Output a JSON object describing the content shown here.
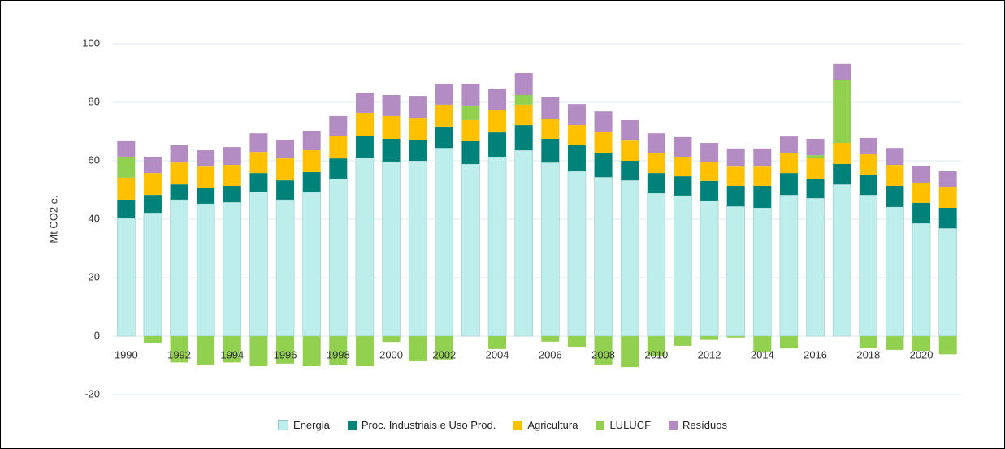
{
  "chart_data": {
    "type": "stacked_bar",
    "y_label": "Mt CO2 e.",
    "categories": [
      "1990",
      null,
      "1992",
      null,
      "1994",
      null,
      "1996",
      null,
      "1998",
      null,
      "2000",
      null,
      "2002",
      null,
      "2004",
      null,
      "2006",
      null,
      "2008",
      null,
      "2010",
      null,
      "2012",
      null,
      "2014",
      null,
      "2016",
      null,
      "2018",
      null,
      "2020",
      null
    ],
    "series": [
      {
        "name": "Energia",
        "color": "#bdeeec",
        "values": [
          40.3,
          42.2,
          46.7,
          45.3,
          45.8,
          49.4,
          46.7,
          49.2,
          53.9,
          61.1,
          59.7,
          60,
          64.4,
          58.9,
          61.4,
          63.6,
          59.4,
          56.4,
          54.4,
          53.3,
          48.9,
          48.1,
          46.4,
          44.4,
          43.9,
          48.3,
          47.2,
          51.9,
          48.3,
          44.2,
          38.6,
          36.9
        ]
      },
      {
        "name": "Proc. Industriais e Uso Prod.",
        "color": "#00827a",
        "values": [
          6.4,
          6.1,
          5.2,
          5.3,
          5.6,
          6.4,
          6.6,
          6.9,
          6.9,
          7.5,
          7.8,
          7.2,
          7.3,
          7.8,
          8.3,
          8.6,
          8.1,
          8.9,
          8.4,
          6.7,
          6.9,
          6.6,
          6.7,
          7,
          7.5,
          7.5,
          6.7,
          7,
          7,
          7.2,
          7,
          7
        ]
      },
      {
        "name": "Agricultura",
        "color": "#ffc000",
        "values": [
          7.5,
          7.5,
          7.5,
          7.4,
          7.2,
          7.2,
          7.5,
          7.5,
          7.8,
          7.8,
          7.8,
          7.5,
          7.5,
          7.2,
          7.5,
          7,
          6.7,
          6.9,
          7.2,
          6.9,
          6.7,
          6.7,
          6.6,
          6.6,
          6.6,
          6.7,
          6.9,
          7.2,
          6.9,
          7.2,
          6.9,
          7.2
        ]
      },
      {
        "name": "LULUCF",
        "color": "#92d050",
        "values": [
          7.2,
          -2.3,
          -9,
          -9.7,
          -9,
          -10.3,
          -9.4,
          -10.3,
          -10,
          -10.3,
          -2,
          -8.6,
          -8,
          5,
          -4.4,
          3.3,
          -1.9,
          -3.6,
          -9.7,
          -10.6,
          -6.7,
          -3.3,
          -1.3,
          -0.5,
          -5.3,
          -4.2,
          1.1,
          21.4,
          -3.9,
          -4.7,
          -5,
          -6.2
        ]
      },
      {
        "name": "Resíduos",
        "color": "#b48cc4",
        "values": [
          5.3,
          5.6,
          5.9,
          5.6,
          6.1,
          6.4,
          6.4,
          6.7,
          6.7,
          6.9,
          7.2,
          7.5,
          7.2,
          7.5,
          7.5,
          7.5,
          7.5,
          7.2,
          6.9,
          7,
          6.9,
          6.7,
          6.4,
          6.2,
          6.2,
          5.8,
          5.6,
          5.6,
          5.6,
          5.8,
          5.8,
          5.3
        ]
      }
    ],
    "ylim": [
      -25,
      105
    ],
    "yticks": [
      -20,
      0,
      20,
      40,
      60,
      80,
      100
    ],
    "grid": true,
    "legend": "bottom"
  }
}
